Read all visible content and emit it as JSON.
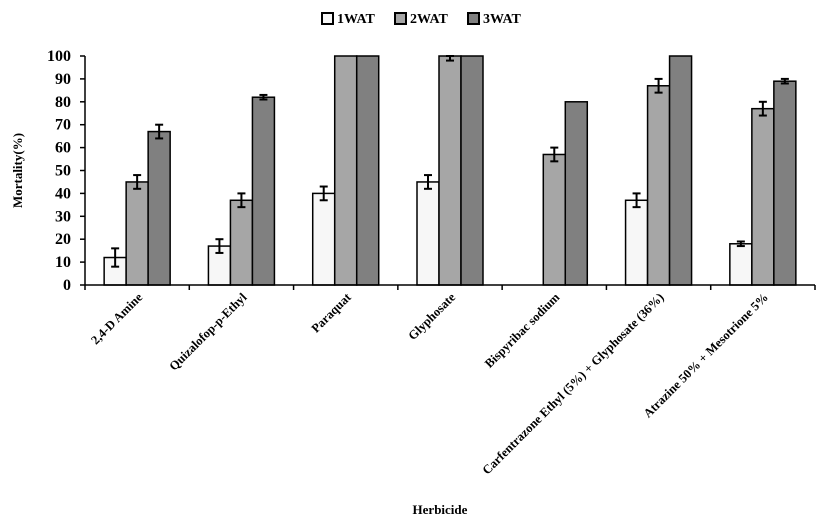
{
  "chart_data": {
    "type": "bar",
    "xlabel": "Herbicide",
    "ylabel": "Mortality(%)",
    "ylim": [
      0,
      100
    ],
    "yticks": [
      0,
      10,
      20,
      30,
      40,
      50,
      60,
      70,
      80,
      90,
      100
    ],
    "legend_position": "top-center",
    "grid": false,
    "categories": [
      "2,4-D Amine",
      "Quizalofop-p-Ethyl",
      "Paraquat",
      "Glyphosate",
      "Bispyribac sodium",
      "Carfentrazone Ethyl (5%) + Glyphosate (36%)",
      "Atrazine 50% + Mesotrione 5%"
    ],
    "series": [
      {
        "name": "1WAT",
        "color": "#f7f7f7",
        "values": [
          12,
          17,
          40,
          45,
          0,
          37,
          18
        ],
        "errors": [
          4,
          3,
          3,
          3,
          0,
          3,
          1
        ]
      },
      {
        "name": "2WAT",
        "color": "#a6a6a6",
        "values": [
          45,
          37,
          100,
          100,
          57,
          87,
          77
        ],
        "errors": [
          3,
          3,
          0,
          2,
          3,
          3,
          3
        ]
      },
      {
        "name": "3WAT",
        "color": "#808080",
        "values": [
          67,
          82,
          100,
          100,
          80,
          100,
          89
        ],
        "errors": [
          3,
          1,
          0,
          0,
          0,
          0,
          1
        ]
      }
    ]
  }
}
